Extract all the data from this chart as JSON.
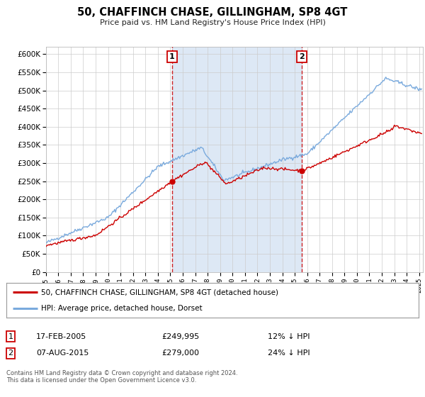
{
  "title": "50, CHAFFINCH CHASE, GILLINGHAM, SP8 4GT",
  "subtitle": "Price paid vs. HM Land Registry's House Price Index (HPI)",
  "legend_line1": "50, CHAFFINCH CHASE, GILLINGHAM, SP8 4GT (detached house)",
  "legend_line2": "HPI: Average price, detached house, Dorset",
  "annotation_footer": "Contains HM Land Registry data © Crown copyright and database right 2024.\nThis data is licensed under the Open Government Licence v3.0.",
  "table_rows": [
    {
      "num": "1",
      "date": "17-FEB-2005",
      "price": "£249,995",
      "note": "12% ↓ HPI"
    },
    {
      "num": "2",
      "date": "07-AUG-2015",
      "price": "£279,000",
      "note": "24% ↓ HPI"
    }
  ],
  "vline1_x": 2005.12,
  "vline2_x": 2015.59,
  "marker1_x": 2005.12,
  "marker1_y": 249995,
  "marker2_x": 2015.59,
  "marker2_y": 279000,
  "ylim": [
    0,
    620000
  ],
  "xlim_start": 1995,
  "xlim_end": 2025.3,
  "red_color": "#cc0000",
  "blue_color": "#7aaadd",
  "background_color": "#ffffff",
  "plot_bg_color": "#ffffff",
  "grid_color": "#cccccc",
  "vline_color": "#cc0000",
  "span_color": "#dde8f5"
}
